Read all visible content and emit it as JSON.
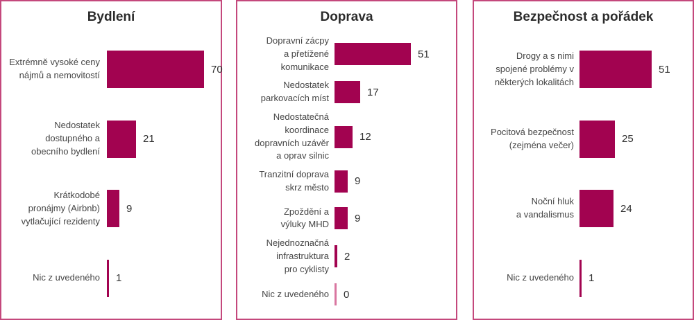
{
  "colors": {
    "bar_fill": "#a20350",
    "zero_line": "#d976a0",
    "panel_border": "#c4487c",
    "title_text": "#2b2b2b",
    "label_text": "#454545",
    "value_text": "#303030",
    "background": "#ffffff"
  },
  "chart_data": [
    {
      "type": "bar",
      "orientation": "horizontal",
      "title": "Bydlení",
      "categories": [
        "Extrémně vysoké ceny nájmů a nemovitostí",
        "Nedostatek dostupného a obecního bydlení",
        "Krátkodobé pronájmy (Airbnb) vytlačující rezidenty",
        "Nic z uvedeného"
      ],
      "values": [
        70,
        21,
        9,
        1
      ],
      "xlabel": "",
      "ylabel": "",
      "xlim": [
        0,
        70
      ],
      "grid": false,
      "legend": false,
      "value_labels": true
    },
    {
      "type": "bar",
      "orientation": "horizontal",
      "title": "Doprava",
      "categories": [
        "Dopravní zácpy a přetížené komunikace",
        "Nedostatek parkovacích míst",
        "Nedostatečná koordinace dopravních uzávěr a oprav silnic",
        "Tranzitní doprava skrz město",
        "Zpoždění a výluky MHD",
        "Nejednoznačná infrastruktura pro cyklisty",
        "Nic z uvedeného"
      ],
      "values": [
        51,
        17,
        12,
        9,
        9,
        2,
        0
      ],
      "xlabel": "",
      "ylabel": "",
      "xlim": [
        0,
        51
      ],
      "grid": false,
      "legend": false,
      "value_labels": true
    },
    {
      "type": "bar",
      "orientation": "horizontal",
      "title": "Bezpečnost a pořádek",
      "categories": [
        "Drogy a s nimi spojené problémy v některých lokalitách",
        "Pocitová bezpečnost (zejména večer)",
        "Noční hluk a vandalismus",
        "Nic z uvedeného"
      ],
      "values": [
        51,
        25,
        24,
        1
      ],
      "xlabel": "",
      "ylabel": "",
      "xlim": [
        0,
        51
      ],
      "grid": false,
      "legend": false,
      "value_labels": true
    }
  ]
}
